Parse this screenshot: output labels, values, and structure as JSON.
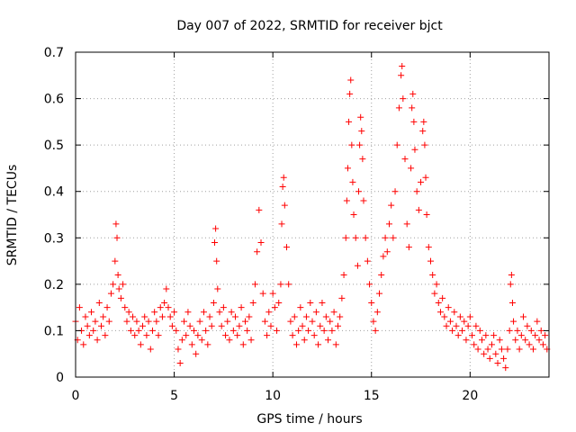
{
  "chart_data": {
    "type": "scatter",
    "title": "Day 007 of 2022, SRMTID for receiver bjct",
    "xlabel": "GPS time / hours",
    "ylabel": "SRMTID / TECUs",
    "xlim": [
      0,
      24
    ],
    "ylim": [
      0,
      0.7
    ],
    "x_ticks": [
      0,
      5,
      10,
      15,
      20
    ],
    "x_tick_labels": [
      "0",
      "5",
      "10",
      "15",
      "20"
    ],
    "y_ticks": [
      0,
      0.1,
      0.2,
      0.3,
      0.4,
      0.5,
      0.6,
      0.7
    ],
    "y_tick_labels": [
      "0",
      "0.1",
      "0.2",
      "0.3",
      "0.4",
      "0.5",
      "0.6",
      "0.7"
    ],
    "grid": true,
    "marker": "plus",
    "series": [
      {
        "name": "SRMTID",
        "color": "#ff0000",
        "points": [
          [
            0.0,
            0.12
          ],
          [
            0.1,
            0.08
          ],
          [
            0.2,
            0.15
          ],
          [
            0.3,
            0.1
          ],
          [
            0.4,
            0.07
          ],
          [
            0.5,
            0.13
          ],
          [
            0.6,
            0.11
          ],
          [
            0.7,
            0.09
          ],
          [
            0.8,
            0.14
          ],
          [
            0.9,
            0.1
          ],
          [
            1.0,
            0.12
          ],
          [
            1.1,
            0.08
          ],
          [
            1.2,
            0.16
          ],
          [
            1.3,
            0.11
          ],
          [
            1.4,
            0.13
          ],
          [
            1.5,
            0.09
          ],
          [
            1.6,
            0.15
          ],
          [
            1.7,
            0.12
          ],
          [
            1.8,
            0.18
          ],
          [
            1.9,
            0.2
          ],
          [
            2.0,
            0.25
          ],
          [
            2.05,
            0.33
          ],
          [
            2.1,
            0.3
          ],
          [
            2.15,
            0.22
          ],
          [
            2.2,
            0.19
          ],
          [
            2.3,
            0.17
          ],
          [
            2.4,
            0.2
          ],
          [
            2.5,
            0.15
          ],
          [
            2.6,
            0.12
          ],
          [
            2.7,
            0.14
          ],
          [
            2.8,
            0.1
          ],
          [
            2.9,
            0.13
          ],
          [
            3.0,
            0.09
          ],
          [
            3.1,
            0.12
          ],
          [
            3.2,
            0.1
          ],
          [
            3.3,
            0.07
          ],
          [
            3.4,
            0.11
          ],
          [
            3.5,
            0.13
          ],
          [
            3.6,
            0.09
          ],
          [
            3.7,
            0.12
          ],
          [
            3.8,
            0.06
          ],
          [
            3.9,
            0.1
          ],
          [
            4.0,
            0.14
          ],
          [
            4.1,
            0.12
          ],
          [
            4.2,
            0.09
          ],
          [
            4.3,
            0.15
          ],
          [
            4.4,
            0.13
          ],
          [
            4.5,
            0.16
          ],
          [
            4.6,
            0.19
          ],
          [
            4.7,
            0.15
          ],
          [
            4.8,
            0.13
          ],
          [
            4.9,
            0.11
          ],
          [
            5.0,
            0.14
          ],
          [
            5.1,
            0.1
          ],
          [
            5.2,
            0.06
          ],
          [
            5.3,
            0.03
          ],
          [
            5.4,
            0.08
          ],
          [
            5.5,
            0.12
          ],
          [
            5.6,
            0.09
          ],
          [
            5.7,
            0.14
          ],
          [
            5.8,
            0.11
          ],
          [
            5.9,
            0.07
          ],
          [
            6.0,
            0.1
          ],
          [
            6.1,
            0.05
          ],
          [
            6.2,
            0.09
          ],
          [
            6.3,
            0.12
          ],
          [
            6.4,
            0.08
          ],
          [
            6.5,
            0.14
          ],
          [
            6.6,
            0.1
          ],
          [
            6.7,
            0.07
          ],
          [
            6.8,
            0.13
          ],
          [
            6.9,
            0.11
          ],
          [
            7.0,
            0.16
          ],
          [
            7.05,
            0.29
          ],
          [
            7.1,
            0.32
          ],
          [
            7.15,
            0.25
          ],
          [
            7.2,
            0.19
          ],
          [
            7.3,
            0.14
          ],
          [
            7.4,
            0.11
          ],
          [
            7.5,
            0.15
          ],
          [
            7.6,
            0.09
          ],
          [
            7.7,
            0.12
          ],
          [
            7.8,
            0.08
          ],
          [
            7.9,
            0.14
          ],
          [
            8.0,
            0.1
          ],
          [
            8.1,
            0.13
          ],
          [
            8.2,
            0.09
          ],
          [
            8.3,
            0.11
          ],
          [
            8.4,
            0.15
          ],
          [
            8.5,
            0.07
          ],
          [
            8.6,
            0.12
          ],
          [
            8.7,
            0.1
          ],
          [
            8.8,
            0.13
          ],
          [
            8.9,
            0.08
          ],
          [
            9.0,
            0.16
          ],
          [
            9.1,
            0.2
          ],
          [
            9.2,
            0.27
          ],
          [
            9.3,
            0.36
          ],
          [
            9.4,
            0.29
          ],
          [
            9.5,
            0.18
          ],
          [
            9.6,
            0.12
          ],
          [
            9.7,
            0.09
          ],
          [
            9.8,
            0.14
          ],
          [
            9.9,
            0.11
          ],
          [
            10.0,
            0.18
          ],
          [
            10.1,
            0.15
          ],
          [
            10.2,
            0.1
          ],
          [
            10.3,
            0.16
          ],
          [
            10.4,
            0.2
          ],
          [
            10.45,
            0.33
          ],
          [
            10.5,
            0.41
          ],
          [
            10.55,
            0.43
          ],
          [
            10.6,
            0.37
          ],
          [
            10.7,
            0.28
          ],
          [
            10.8,
            0.2
          ],
          [
            10.9,
            0.12
          ],
          [
            11.0,
            0.09
          ],
          [
            11.1,
            0.13
          ],
          [
            11.2,
            0.07
          ],
          [
            11.3,
            0.1
          ],
          [
            11.4,
            0.15
          ],
          [
            11.5,
            0.11
          ],
          [
            11.6,
            0.08
          ],
          [
            11.7,
            0.13
          ],
          [
            11.8,
            0.1
          ],
          [
            11.9,
            0.16
          ],
          [
            12.0,
            0.12
          ],
          [
            12.1,
            0.09
          ],
          [
            12.2,
            0.14
          ],
          [
            12.3,
            0.07
          ],
          [
            12.4,
            0.11
          ],
          [
            12.5,
            0.16
          ],
          [
            12.6,
            0.1
          ],
          [
            12.7,
            0.13
          ],
          [
            12.8,
            0.08
          ],
          [
            12.9,
            0.12
          ],
          [
            13.0,
            0.1
          ],
          [
            13.1,
            0.14
          ],
          [
            13.2,
            0.07
          ],
          [
            13.3,
            0.11
          ],
          [
            13.4,
            0.13
          ],
          [
            13.5,
            0.17
          ],
          [
            13.6,
            0.22
          ],
          [
            13.7,
            0.3
          ],
          [
            13.75,
            0.38
          ],
          [
            13.8,
            0.45
          ],
          [
            13.85,
            0.55
          ],
          [
            13.9,
            0.61
          ],
          [
            13.95,
            0.64
          ],
          [
            14.0,
            0.5
          ],
          [
            14.05,
            0.42
          ],
          [
            14.1,
            0.35
          ],
          [
            14.2,
            0.3
          ],
          [
            14.3,
            0.24
          ],
          [
            14.35,
            0.4
          ],
          [
            14.4,
            0.5
          ],
          [
            14.45,
            0.56
          ],
          [
            14.5,
            0.53
          ],
          [
            14.55,
            0.47
          ],
          [
            14.6,
            0.38
          ],
          [
            14.7,
            0.3
          ],
          [
            14.8,
            0.25
          ],
          [
            14.9,
            0.2
          ],
          [
            15.0,
            0.16
          ],
          [
            15.1,
            0.12
          ],
          [
            15.2,
            0.1
          ],
          [
            15.3,
            0.14
          ],
          [
            15.4,
            0.18
          ],
          [
            15.5,
            0.22
          ],
          [
            15.6,
            0.26
          ],
          [
            15.7,
            0.3
          ],
          [
            15.8,
            0.27
          ],
          [
            15.9,
            0.33
          ],
          [
            16.0,
            0.37
          ],
          [
            16.1,
            0.3
          ],
          [
            16.2,
            0.4
          ],
          [
            16.3,
            0.5
          ],
          [
            16.4,
            0.58
          ],
          [
            16.5,
            0.65
          ],
          [
            16.55,
            0.67
          ],
          [
            16.6,
            0.6
          ],
          [
            16.7,
            0.47
          ],
          [
            16.8,
            0.33
          ],
          [
            16.9,
            0.28
          ],
          [
            17.0,
            0.45
          ],
          [
            17.05,
            0.58
          ],
          [
            17.1,
            0.61
          ],
          [
            17.15,
            0.55
          ],
          [
            17.2,
            0.49
          ],
          [
            17.3,
            0.4
          ],
          [
            17.4,
            0.36
          ],
          [
            17.5,
            0.42
          ],
          [
            17.6,
            0.53
          ],
          [
            17.65,
            0.55
          ],
          [
            17.7,
            0.5
          ],
          [
            17.75,
            0.43
          ],
          [
            17.8,
            0.35
          ],
          [
            17.9,
            0.28
          ],
          [
            18.0,
            0.25
          ],
          [
            18.1,
            0.22
          ],
          [
            18.2,
            0.18
          ],
          [
            18.3,
            0.2
          ],
          [
            18.4,
            0.16
          ],
          [
            18.5,
            0.14
          ],
          [
            18.6,
            0.17
          ],
          [
            18.7,
            0.13
          ],
          [
            18.8,
            0.11
          ],
          [
            18.9,
            0.15
          ],
          [
            19.0,
            0.12
          ],
          [
            19.1,
            0.1
          ],
          [
            19.2,
            0.14
          ],
          [
            19.3,
            0.11
          ],
          [
            19.4,
            0.09
          ],
          [
            19.5,
            0.13
          ],
          [
            19.6,
            0.1
          ],
          [
            19.7,
            0.12
          ],
          [
            19.8,
            0.08
          ],
          [
            19.9,
            0.11
          ],
          [
            20.0,
            0.13
          ],
          [
            20.1,
            0.09
          ],
          [
            20.2,
            0.07
          ],
          [
            20.3,
            0.11
          ],
          [
            20.4,
            0.06
          ],
          [
            20.5,
            0.1
          ],
          [
            20.6,
            0.08
          ],
          [
            20.7,
            0.05
          ],
          [
            20.8,
            0.09
          ],
          [
            20.9,
            0.06
          ],
          [
            21.0,
            0.04
          ],
          [
            21.1,
            0.07
          ],
          [
            21.2,
            0.09
          ],
          [
            21.3,
            0.05
          ],
          [
            21.4,
            0.03
          ],
          [
            21.5,
            0.08
          ],
          [
            21.6,
            0.06
          ],
          [
            21.7,
            0.04
          ],
          [
            21.8,
            0.02
          ],
          [
            21.9,
            0.06
          ],
          [
            22.0,
            0.1
          ],
          [
            22.05,
            0.2
          ],
          [
            22.1,
            0.22
          ],
          [
            22.15,
            0.16
          ],
          [
            22.2,
            0.12
          ],
          [
            22.3,
            0.08
          ],
          [
            22.4,
            0.1
          ],
          [
            22.5,
            0.06
          ],
          [
            22.6,
            0.09
          ],
          [
            22.7,
            0.13
          ],
          [
            22.8,
            0.08
          ],
          [
            22.9,
            0.11
          ],
          [
            23.0,
            0.07
          ],
          [
            23.1,
            0.1
          ],
          [
            23.2,
            0.06
          ],
          [
            23.3,
            0.09
          ],
          [
            23.4,
            0.12
          ],
          [
            23.5,
            0.08
          ],
          [
            23.6,
            0.1
          ],
          [
            23.7,
            0.07
          ],
          [
            23.8,
            0.09
          ],
          [
            23.9,
            0.06
          ]
        ]
      }
    ]
  }
}
